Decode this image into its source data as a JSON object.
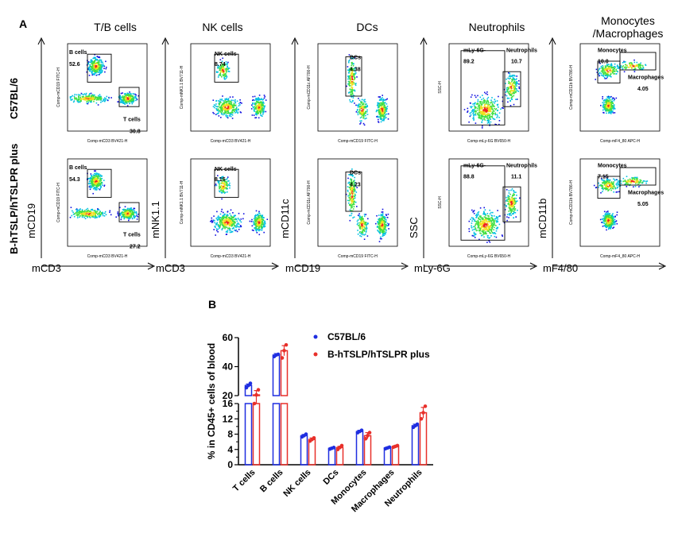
{
  "panel_a": {
    "letter": "A",
    "row_labels": [
      "C57BL/6",
      "B-hTSLP/hTSLPR plus"
    ],
    "columns": [
      {
        "title": "T/B cells",
        "x_axis": "mCD3",
        "y_axis": "mCD19",
        "inner_x": "Comp-mCD3 BV421-H",
        "inner_y": "Comp-mCD19 FITC-H",
        "gates": [
          {
            "label": "B cells",
            "values": [
              "52.6",
              "54.3"
            ]
          },
          {
            "label": "T cells",
            "values": [
              "30.8",
              "27.2"
            ]
          }
        ]
      },
      {
        "title": "NK cells",
        "x_axis": "mCD3",
        "y_axis": "mNK1.1",
        "inner_x": "Comp-mCD3 BV421-H",
        "inner_y": "Comp-mNK1.1 BV711-H",
        "gates": [
          {
            "label": "NK cells",
            "values": [
              "8.74",
              "8.15"
            ]
          }
        ]
      },
      {
        "title": "DCs",
        "x_axis": "mCD19",
        "y_axis": "mCD11c",
        "inner_x": "Comp-mCD19 FITC-H",
        "inner_y": "Comp-mCD11c AF700-H",
        "gates": [
          {
            "label": "DCs",
            "values": [
              "4.38",
              "4.23"
            ]
          }
        ]
      },
      {
        "title": "Neutrophils",
        "x_axis": "mLy-6G",
        "y_axis": "SSC",
        "inner_x": "Comp-mLy-6G BV650-H",
        "inner_y": "SSC-H",
        "gates": [
          {
            "label": "mLy-6G-",
            "values": [
              "89.2",
              "88.8"
            ]
          },
          {
            "label": "Neutrophils",
            "values": [
              "10.7",
              "11.1"
            ]
          }
        ]
      },
      {
        "title": "Monocytes\n/Macrophages",
        "x_axis": "mF4/80",
        "y_axis": "mCD11b",
        "inner_x": "Comp-mF4_80 APC-H",
        "inner_y": "Comp-mCD11b BV786-H",
        "gates": [
          {
            "label": "Monocytes",
            "values": [
              "10.0",
              "7.15"
            ]
          },
          {
            "label": "Macrophages",
            "values": [
              "4.05",
              "5.05"
            ]
          }
        ]
      }
    ]
  },
  "chart_data": {
    "letter": "B",
    "type": "bar",
    "ylabel": "% in CD45+ cells of blood",
    "categories": [
      "T cells",
      "B cells",
      "NK cells",
      "DCs",
      "Monocytes",
      "Macrophages",
      "Neutrophils"
    ],
    "y_axis_break": {
      "lower": [
        0,
        16
      ],
      "upper": [
        20,
        60
      ]
    },
    "y_ticks": [
      0,
      4,
      8,
      12,
      16,
      20,
      40,
      60
    ],
    "legend_position": "top-right",
    "series": [
      {
        "name": "C57BL/6",
        "color": "#1f2ee0",
        "values": [
          27.0,
          48.0,
          7.6,
          4.3,
          8.7,
          4.4,
          10.2
        ],
        "errors": [
          1.0,
          1.0,
          0.3,
          0.2,
          0.3,
          0.2,
          0.4
        ],
        "points": [
          [
            25.5,
            27.0,
            28.5
          ],
          [
            47.0,
            48.0,
            48.5
          ],
          [
            7.3,
            7.6,
            8.0
          ],
          [
            4.1,
            4.3,
            4.5
          ],
          [
            8.4,
            8.7,
            9.0
          ],
          [
            4.2,
            4.4,
            4.6
          ],
          [
            9.8,
            10.2,
            10.6
          ]
        ]
      },
      {
        "name": "B-hTSLP/hTSLPR plus",
        "color": "#e8302a",
        "values": [
          20.5,
          51.0,
          6.6,
          4.5,
          7.6,
          4.8,
          13.6
        ],
        "errors": [
          3.0,
          3.5,
          0.4,
          0.3,
          0.8,
          0.2,
          1.4
        ],
        "points": [
          [
            17.0,
            20.5,
            24.0
          ],
          [
            46.0,
            51.0,
            55.0
          ],
          [
            6.2,
            6.6,
            7.0
          ],
          [
            4.0,
            4.5,
            5.0
          ],
          [
            6.8,
            7.6,
            8.4
          ],
          [
            4.6,
            4.8,
            5.0
          ],
          [
            12.0,
            13.6,
            15.3
          ]
        ]
      }
    ]
  }
}
